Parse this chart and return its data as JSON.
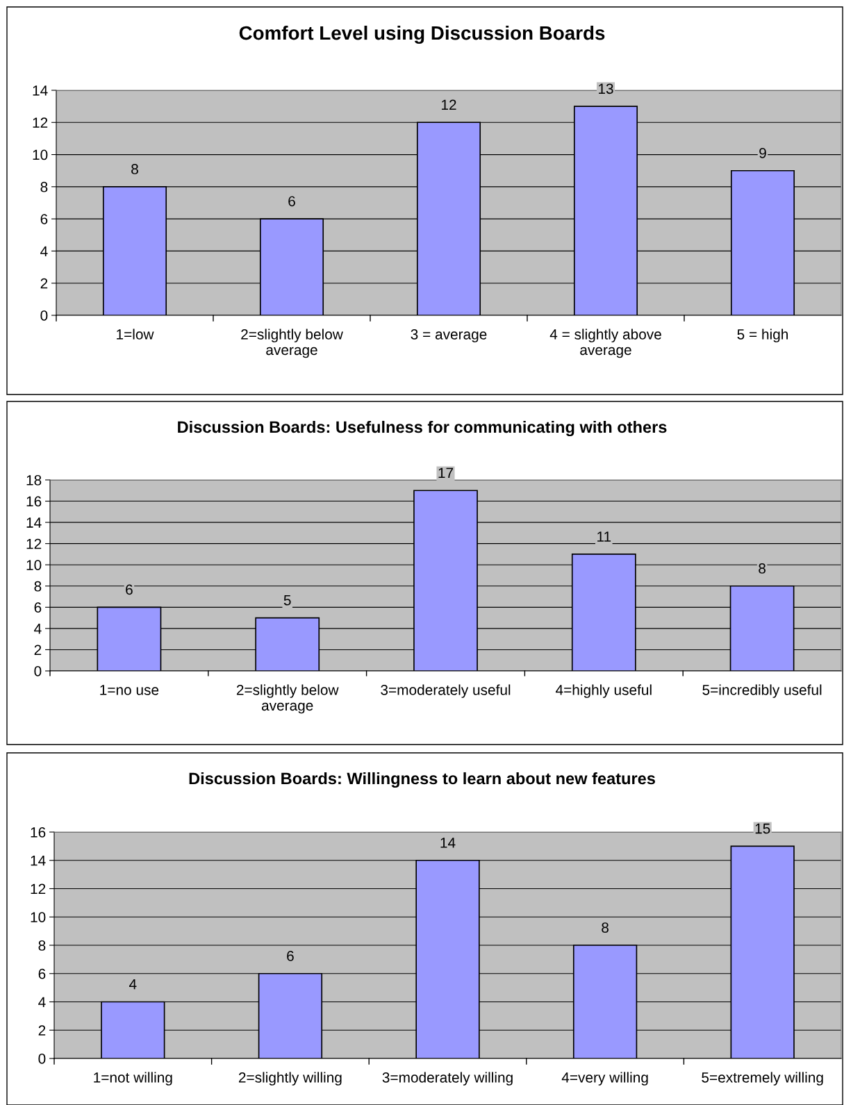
{
  "chart_data": [
    {
      "type": "bar",
      "title": "Comfort Level using Discussion Boards",
      "categories": [
        "1=low",
        "2=slightly below\naverage",
        "3 = average",
        "4 = slightly above\naverage",
        "5 = high"
      ],
      "values": [
        8,
        6,
        12,
        13,
        9
      ],
      "color": "#9999ff",
      "ylim": [
        0,
        14
      ],
      "yticks": [
        0,
        2,
        4,
        6,
        8,
        10,
        12,
        14
      ],
      "grid": "y",
      "data_labels": true
    },
    {
      "type": "bar",
      "title": "Discussion Boards: Usefulness for communicating with others",
      "categories": [
        "1=no use",
        "2=slightly below\naverage",
        "3=moderately useful",
        "4=highly useful",
        "5=incredibly useful"
      ],
      "values": [
        6,
        5,
        17,
        11,
        8
      ],
      "color": "#9999ff",
      "ylim": [
        0,
        18
      ],
      "yticks": [
        0,
        2,
        4,
        6,
        8,
        10,
        12,
        14,
        16,
        18
      ],
      "grid": "y",
      "data_labels": true
    },
    {
      "type": "bar",
      "title": "Discussion Boards: Willingness to learn about new features",
      "categories": [
        "1=not willing",
        "2=slightly willing",
        "3=moderately willing",
        "4=very willing",
        "5=extremely willing"
      ],
      "values": [
        4,
        6,
        14,
        8,
        15
      ],
      "color": "#9999ff",
      "ylim": [
        0,
        16
      ],
      "yticks": [
        0,
        2,
        4,
        6,
        8,
        10,
        12,
        14,
        16
      ],
      "grid": "y",
      "data_labels": true
    }
  ]
}
